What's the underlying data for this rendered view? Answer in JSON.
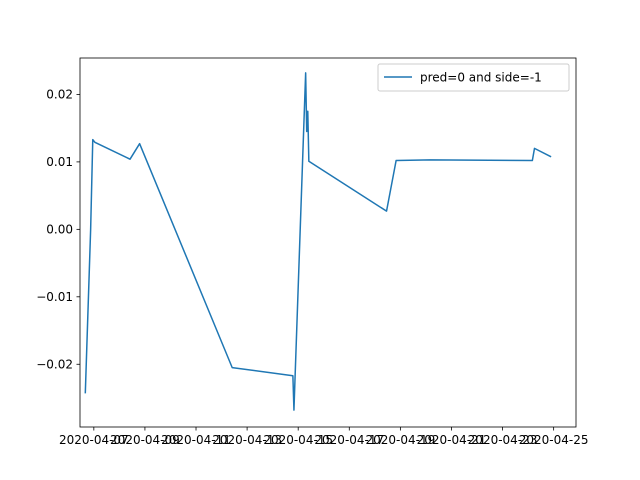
{
  "chart_data": {
    "type": "line",
    "title": "",
    "xlabel": "",
    "ylabel": "",
    "grid": false,
    "legend": "top-right",
    "color": "#1f77b4",
    "x_ticks": [
      "2020-04-07",
      "2020-04-09",
      "2020-04-11",
      "2020-04-13",
      "2020-04-15",
      "2020-04-17",
      "2020-04-19",
      "2020-04-21",
      "2020-04-23",
      "2020-04-25"
    ],
    "y_ticks": [
      "−0.02",
      "−0.01",
      "0.00",
      "0.01",
      "0.02"
    ],
    "xlim": [
      "2020-04-06T11:00",
      "2020-04-25T21:00"
    ],
    "ylim": [
      -0.0293,
      0.0254
    ],
    "series": [
      {
        "name": "pred=0 and side=-1",
        "points": [
          [
            "2020-04-06T16:00",
            -0.0242
          ],
          [
            "2020-04-06T21:00",
            0.0
          ],
          [
            "2020-04-06T23:00",
            0.0133
          ],
          [
            "2020-04-07T01:00",
            0.0129
          ],
          [
            "2020-04-08T10:00",
            0.0104
          ],
          [
            "2020-04-08T19:00",
            0.0127
          ],
          [
            "2020-04-12T10:00",
            -0.0205
          ],
          [
            "2020-04-14T19:00",
            -0.0217
          ],
          [
            "2020-04-14T20:00",
            -0.0268
          ],
          [
            "2020-04-14T21:00",
            -0.0222
          ],
          [
            "2020-04-15T07:00",
            0.0232
          ],
          [
            "2020-04-15T08:00",
            0.0145
          ],
          [
            "2020-04-15T09:00",
            0.0175
          ],
          [
            "2020-04-15T10:00",
            0.0101
          ],
          [
            "2020-04-18T11:00",
            0.0027
          ],
          [
            "2020-04-18T20:00",
            0.0102
          ],
          [
            "2020-04-20T04:00",
            0.0103
          ],
          [
            "2020-04-24T04:00",
            0.0102
          ],
          [
            "2020-04-24T06:00",
            0.012
          ],
          [
            "2020-04-24T21:00",
            0.0108
          ]
        ]
      }
    ]
  }
}
